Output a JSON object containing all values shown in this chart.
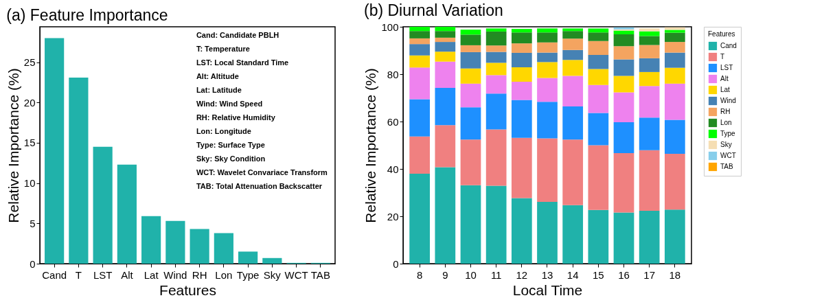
{
  "chart_data": [
    {
      "type": "bar",
      "title": "(a) Feature Importance",
      "xlabel": "Features",
      "ylabel": "Relative Importance (%)",
      "categories": [
        "Cand",
        "T",
        "LST",
        "Alt",
        "Lat",
        "Wind",
        "RH",
        "Lon",
        "Type",
        "Sky",
        "WCT",
        "TAB"
      ],
      "values": [
        28.0,
        23.1,
        14.5,
        12.3,
        5.9,
        5.3,
        4.3,
        3.8,
        1.5,
        0.7,
        0.1,
        0.1
      ],
      "color": "#20b2aa",
      "ylim": [
        0,
        29.4
      ],
      "yticks": [
        0,
        5,
        10,
        15,
        20,
        25
      ],
      "grid": false,
      "annotations": [
        "Cand: Candidate PBLH",
        "T: Temperature",
        "LST: Local Standard Time",
        "Alt: Altitude",
        "Lat: Latitude",
        "Wind: Wind Speed",
        "RH: Relative Humidity",
        "Lon: Longitude",
        "Type: Surface Type",
        "Sky: Sky Condition",
        "WCT: Wavelet Convariace Transform",
        "TAB: Total Attenuation Backscatter"
      ]
    },
    {
      "type": "bar",
      "stacked": true,
      "title": "(b) Diurnal Variation",
      "xlabel": "Local Time",
      "ylabel": "Relative Importance (%)",
      "legend_title": "Features",
      "legend": "right",
      "grid": false,
      "categories": [
        "8",
        "9",
        "10",
        "11",
        "12",
        "13",
        "14",
        "15",
        "16",
        "17",
        "18"
      ],
      "ylim": [
        0,
        100
      ],
      "yticks": [
        0,
        20,
        40,
        60,
        80,
        100
      ],
      "series": [
        {
          "name": "Cand",
          "color": "#20b2aa",
          "values": [
            38.0,
            40.7,
            33.1,
            32.9,
            27.7,
            26.1,
            24.7,
            22.7,
            21.6,
            22.3,
            22.8
          ]
        },
        {
          "name": "T",
          "color": "#f08080",
          "values": [
            15.7,
            17.8,
            19.3,
            23.8,
            25.4,
            26.8,
            27.7,
            27.3,
            25.1,
            25.6,
            23.6
          ]
        },
        {
          "name": "LST",
          "color": "#1e90ff",
          "values": [
            15.7,
            15.7,
            13.6,
            15.1,
            16.0,
            15.4,
            14.0,
            13.6,
            13.0,
            13.8,
            14.3
          ]
        },
        {
          "name": "Alt",
          "color": "#ee82ee",
          "values": [
            13.4,
            11.1,
            10.0,
            7.8,
            7.7,
            10.1,
            12.9,
            11.8,
            12.6,
            13.3,
            15.3
          ]
        },
        {
          "name": "Lat",
          "color": "#ffd700",
          "values": [
            5.1,
            4.2,
            6.4,
            5.2,
            6.1,
            6.7,
            6.7,
            6.8,
            7.0,
            5.9,
            6.7
          ]
        },
        {
          "name": "Wind",
          "color": "#4682b4",
          "values": [
            4.8,
            4.1,
            6.9,
            4.6,
            6.1,
            4.0,
            4.2,
            5.9,
            6.9,
            5.8,
            6.4
          ]
        },
        {
          "name": "RH",
          "color": "#f4a460",
          "values": [
            2.4,
            1.8,
            2.9,
            2.7,
            4.0,
            4.3,
            4.8,
            5.9,
            5.6,
            5.6,
            4.5
          ]
        },
        {
          "name": "Lon",
          "color": "#228b22",
          "values": [
            3.1,
            2.8,
            4.5,
            5.9,
            4.6,
            4.2,
            3.2,
            3.6,
            5.0,
            3.8,
            3.9
          ]
        },
        {
          "name": "Type",
          "color": "#00ff00",
          "values": [
            1.8,
            1.8,
            2.1,
            1.3,
            1.5,
            1.7,
            1.1,
            1.7,
            1.6,
            2.0,
            1.2
          ]
        },
        {
          "name": "Sky",
          "color": "#f5deb3",
          "values": [
            0,
            0,
            0,
            0,
            0,
            0,
            0,
            0,
            0.5,
            1.2,
            1.1
          ]
        },
        {
          "name": "WCT",
          "color": "#87ceeb",
          "values": [
            0,
            0,
            0,
            0,
            0,
            0,
            0,
            0,
            0.9,
            0,
            0
          ]
        },
        {
          "name": "TAB",
          "color": "#ffa500",
          "values": [
            0,
            0,
            0,
            0,
            0,
            0,
            0,
            0,
            0,
            0,
            0
          ]
        }
      ]
    }
  ]
}
